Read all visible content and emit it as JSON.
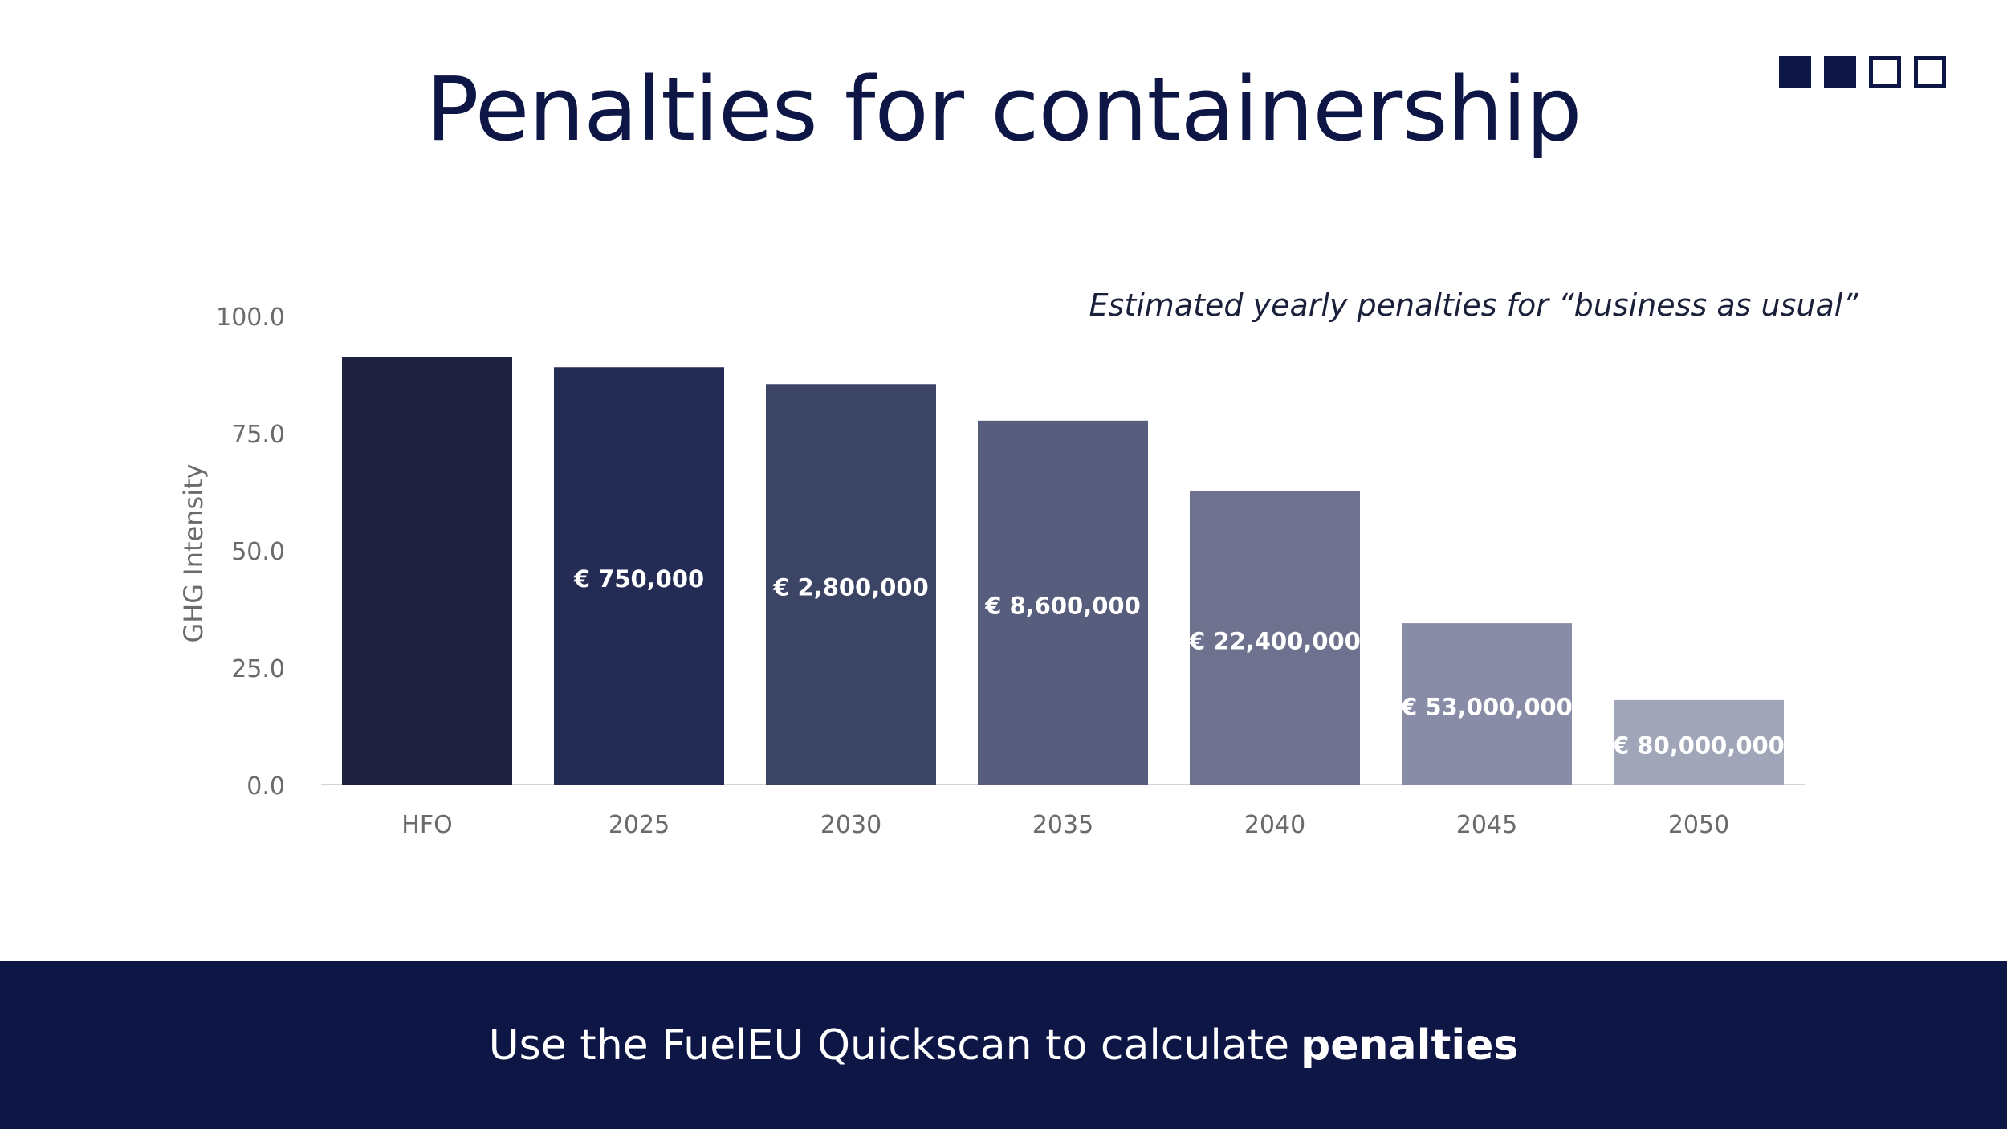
{
  "slide": {
    "title": "Penalties for containership",
    "subtitle": "Estimated yearly penalties for “business as usual”",
    "progress": [
      true,
      true,
      false,
      false
    ]
  },
  "footer": {
    "text": "Use the FuelEU Quickscan to calculate",
    "bold": "penalties"
  },
  "chart_data": {
    "type": "bar",
    "ylabel": "GHG Intensity",
    "xlabel": "",
    "ylim": [
      0,
      100
    ],
    "yticks": [
      "0.0",
      "25.0",
      "50.0",
      "75.0",
      "100.0"
    ],
    "grid": false,
    "categories": [
      "HFO",
      "2025",
      "2030",
      "2035",
      "2040",
      "2045",
      "2050"
    ],
    "values": [
      91.2,
      89.0,
      85.4,
      77.6,
      62.5,
      34.4,
      18.0
    ],
    "data_labels": [
      "",
      "€ 750,000",
      "€ 2,800,000",
      "€ 8,600,000",
      "€ 22,400,000",
      "€ 53,000,000",
      "€ 80,000,000"
    ],
    "colors": [
      "#1f2140",
      "#242c55",
      "#3c4466",
      "#575d7c",
      "#6e728f",
      "#888ca6",
      "#a1a5b8"
    ]
  }
}
